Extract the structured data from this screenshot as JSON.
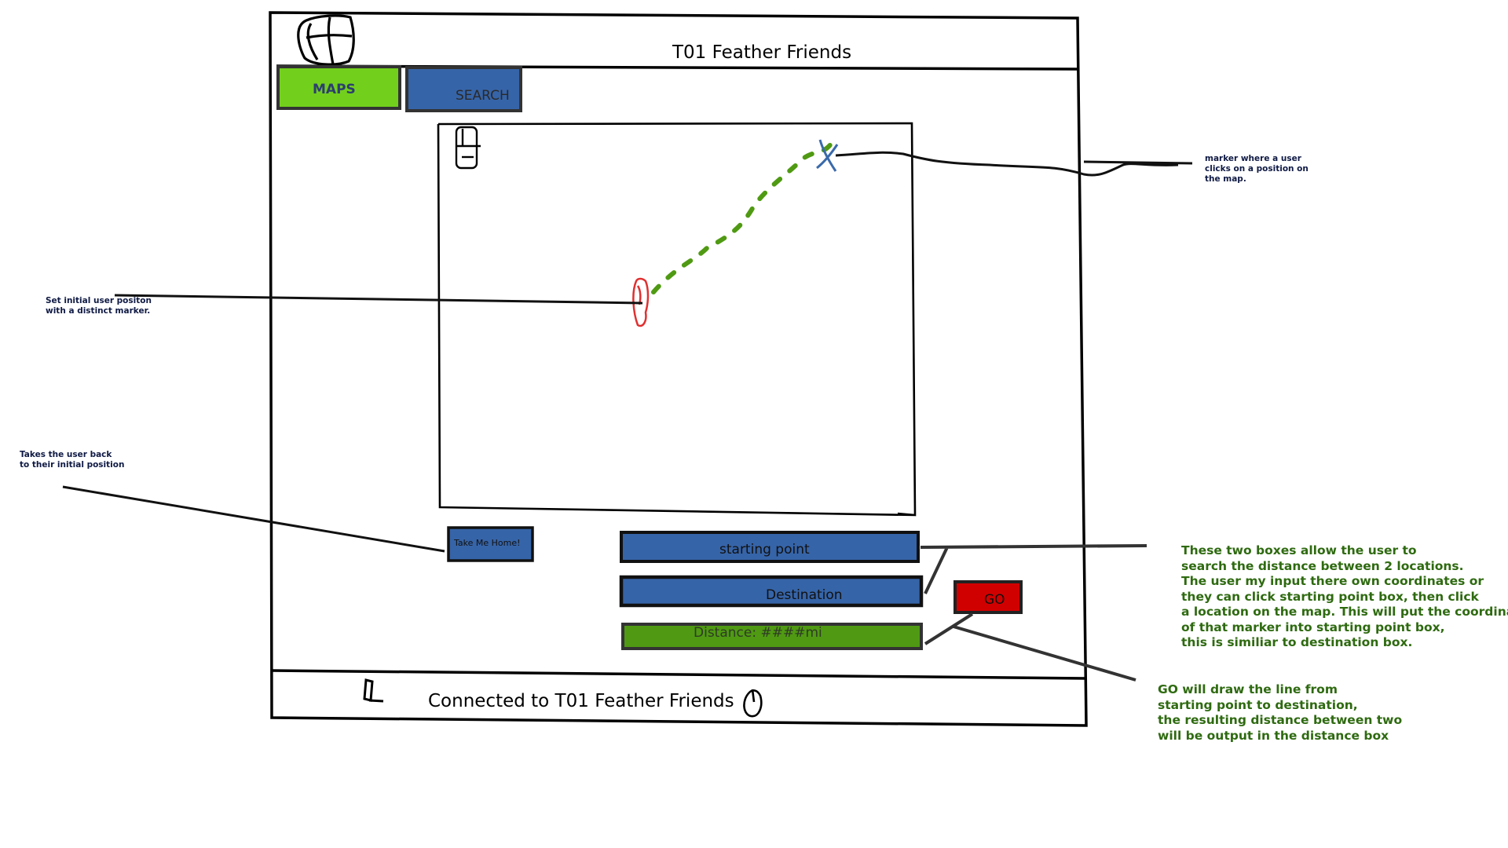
{
  "window": {
    "title": "T01 Feather Friends",
    "logo_icon": "globe-icon"
  },
  "tabs": [
    {
      "label": "MAPS",
      "color": "#72d01c"
    },
    {
      "label": "SEARCH",
      "color": "#3664a8"
    }
  ],
  "map": {
    "zoom_icon": "zoom-control-icon",
    "start_marker_icon": "map-pin-icon",
    "destination_marker_icon": "x-marker-icon",
    "route_color": "#4f9a12",
    "start_marker_color": "#e03030",
    "destination_marker_color": "#3a6aaa"
  },
  "controls": {
    "home_button": "Take Me Home!",
    "starting_point": "starting point",
    "destination": "Destination",
    "go_button": "GO",
    "distance": "Distance: ####mi",
    "colors": {
      "input": "#3664a8",
      "go": "#d10000",
      "distance": "#4f9a12"
    }
  },
  "statusbar": {
    "text": "Connected to T01 Feather Friends",
    "left_icon": "user-icon",
    "right_icon": "clock-icon"
  },
  "annotations": {
    "marker_note": "marker where a user\nclicks on a position on\nthe map.",
    "initial_note": "Set initial user positon\nwith a distinct marker.",
    "home_note": "Takes the user back\nto their initial position",
    "boxes_note": "These two boxes allow the user to\nsearch the distance between 2 locations.\nThe user my input there own coordinates or\nthey can click starting point box, then click\na location on the map. This will put the coordinates\nof that marker into starting point box,\nthis is similiar to destination box.",
    "go_note": "GO will draw the line from\nstarting point to destination,\nthe resulting distance between two\nwill be output in the distance box"
  }
}
